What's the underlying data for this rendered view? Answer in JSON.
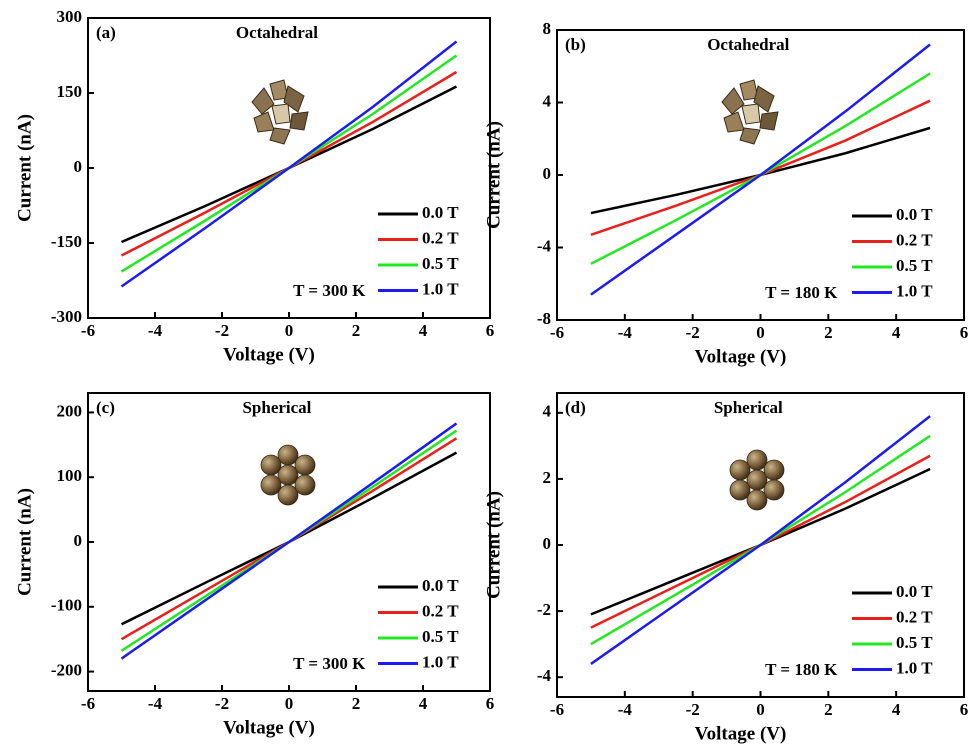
{
  "chart_data": [
    {
      "type": "line",
      "panel_label": "(a)",
      "title": "Octahedral",
      "annotation": "T = 300 K",
      "x_label": "Voltage (V)",
      "y_label": "Current (nA)",
      "x": [
        -5,
        -2.5,
        0,
        2.5,
        5
      ],
      "xlim": [
        -6,
        6
      ],
      "xticks": [
        -6,
        -4,
        -2,
        0,
        2,
        4,
        6
      ],
      "ylim": [
        -300,
        300
      ],
      "yticks": [
        -300,
        -150,
        0,
        150,
        300
      ],
      "legend": "lower right",
      "series": [
        {
          "name": "0.0 T",
          "color": "#000000",
          "values": [
            -148,
            -76,
            0,
            78,
            163
          ]
        },
        {
          "name": "0.2 T",
          "color": "#e8201c",
          "values": [
            -175,
            -89,
            0,
            92,
            192
          ]
        },
        {
          "name": "0.5 T",
          "color": "#22e822",
          "values": [
            -207,
            -105,
            0,
            108,
            225
          ]
        },
        {
          "name": "1.0 T",
          "color": "#1c1cf0",
          "values": [
            -237,
            -120,
            0,
            122,
            253
          ]
        }
      ]
    },
    {
      "type": "line",
      "panel_label": "(b)",
      "title": "Octahedral",
      "annotation": "T = 180 K",
      "x_label": "Voltage (V)",
      "y_label": "Current (nA)",
      "x": [
        -5,
        -2.5,
        0,
        2.5,
        5
      ],
      "xlim": [
        -6,
        6
      ],
      "xticks": [
        -6,
        -4,
        -2,
        0,
        2,
        4,
        6
      ],
      "ylim": [
        -8,
        8
      ],
      "yticks": [
        -8,
        -4,
        0,
        4,
        8
      ],
      "legend": "lower right",
      "series": [
        {
          "name": "0.0 T",
          "color": "#000000",
          "values": [
            -2.1,
            -1.1,
            0,
            1.2,
            2.6
          ]
        },
        {
          "name": "0.2 T",
          "color": "#e8201c",
          "values": [
            -3.3,
            -1.7,
            0,
            1.9,
            4.1
          ]
        },
        {
          "name": "0.5 T",
          "color": "#22e822",
          "values": [
            -4.9,
            -2.5,
            0,
            2.7,
            5.6
          ]
        },
        {
          "name": "1.0 T",
          "color": "#1c1cf0",
          "values": [
            -6.6,
            -3.3,
            0,
            3.5,
            7.2
          ]
        }
      ]
    },
    {
      "type": "line",
      "panel_label": "(c)",
      "title": "Spherical",
      "annotation": "T = 300 K",
      "x_label": "Voltage (V)",
      "y_label": "Current (nA)",
      "x": [
        -5,
        -2.5,
        0,
        2.5,
        5
      ],
      "xlim": [
        -6,
        6
      ],
      "xticks": [
        -6,
        -4,
        -2,
        0,
        2,
        4,
        6
      ],
      "ylim": [
        -230,
        230
      ],
      "yticks": [
        -200,
        -100,
        0,
        100,
        200
      ],
      "legend": "lower right",
      "series": [
        {
          "name": "0.0 T",
          "color": "#000000",
          "values": [
            -127,
            -63,
            0,
            68,
            138
          ]
        },
        {
          "name": "0.2 T",
          "color": "#e8201c",
          "values": [
            -150,
            -75,
            0,
            79,
            160
          ]
        },
        {
          "name": "0.5 T",
          "color": "#22e822",
          "values": [
            -168,
            -84,
            0,
            85,
            172
          ]
        },
        {
          "name": "1.0 T",
          "color": "#1c1cf0",
          "values": [
            -180,
            -90,
            0,
            91,
            183
          ]
        }
      ]
    },
    {
      "type": "line",
      "panel_label": "(d)",
      "title": "Spherical",
      "annotation": "T = 180 K",
      "x_label": "Voltage (V)",
      "y_label": "Current (nA)",
      "x": [
        -5,
        -2.5,
        0,
        2.5,
        5
      ],
      "xlim": [
        -6,
        6
      ],
      "xticks": [
        -6,
        -4,
        -2,
        0,
        2,
        4,
        6
      ],
      "ylim": [
        -4.6,
        4.6
      ],
      "yticks": [
        -4,
        -2,
        0,
        2,
        4
      ],
      "legend": "lower right",
      "series": [
        {
          "name": "0.0 T",
          "color": "#000000",
          "values": [
            -2.1,
            -1.05,
            0,
            1.1,
            2.3
          ]
        },
        {
          "name": "0.2 T",
          "color": "#e8201c",
          "values": [
            -2.5,
            -1.25,
            0,
            1.3,
            2.7
          ]
        },
        {
          "name": "0.5 T",
          "color": "#22e822",
          "values": [
            -3.0,
            -1.5,
            0,
            1.6,
            3.3
          ]
        },
        {
          "name": "1.0 T",
          "color": "#1c1cf0",
          "values": [
            -3.6,
            -1.8,
            0,
            1.9,
            3.9
          ]
        }
      ]
    }
  ]
}
